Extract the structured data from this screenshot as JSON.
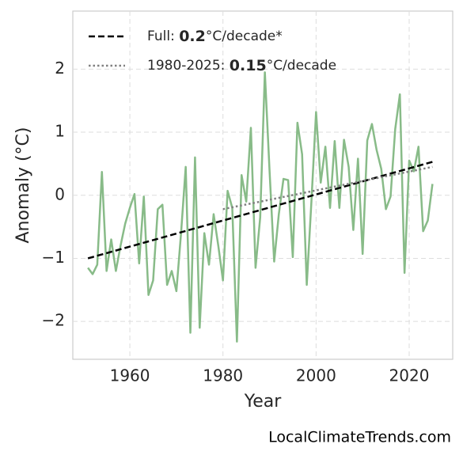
{
  "chart_data": {
    "type": "line",
    "xlabel": "Year",
    "ylabel": "Anomaly (°C)",
    "source": "LocalClimateTrends.com",
    "x": [
      1951,
      1952,
      1953,
      1954,
      1955,
      1956,
      1957,
      1958,
      1959,
      1960,
      1961,
      1962,
      1963,
      1964,
      1965,
      1966,
      1967,
      1968,
      1969,
      1970,
      1971,
      1972,
      1973,
      1974,
      1975,
      1976,
      1977,
      1978,
      1979,
      1980,
      1981,
      1982,
      1983,
      1984,
      1985,
      1986,
      1987,
      1988,
      1989,
      1990,
      1991,
      1992,
      1993,
      1994,
      1995,
      1996,
      1997,
      1998,
      1999,
      2000,
      2001,
      2002,
      2003,
      2004,
      2005,
      2006,
      2007,
      2008,
      2009,
      2010,
      2011,
      2012,
      2013,
      2014,
      2015,
      2016,
      2017,
      2018,
      2019,
      2020,
      2021,
      2022,
      2023,
      2024,
      2025
    ],
    "series": [
      {
        "color": "#88bb88",
        "style": "solid",
        "values": [
          -1.15,
          -1.25,
          -1.1,
          0.37,
          -1.2,
          -0.7,
          -1.2,
          -0.8,
          -0.45,
          -0.2,
          0.02,
          -1.08,
          -0.02,
          -1.58,
          -1.35,
          -0.22,
          -0.15,
          -1.42,
          -1.2,
          -1.52,
          -0.6,
          0.45,
          -2.18,
          0.6,
          -2.1,
          -0.6,
          -1.1,
          -0.3,
          -0.8,
          -1.35,
          0.07,
          -0.2,
          -2.32,
          0.32,
          -0.1,
          1.07,
          -1.15,
          -0.35,
          1.95,
          0.4,
          -1.05,
          -0.3,
          0.26,
          0.24,
          -0.98,
          1.15,
          0.65,
          -1.42,
          -0.1,
          1.32,
          0.2,
          0.77,
          -0.2,
          0.86,
          -0.2,
          0.88,
          0.45,
          -0.55,
          0.58,
          -0.93,
          0.87,
          1.13,
          0.72,
          0.42,
          -0.22,
          -0.02,
          1.05,
          1.6,
          -1.23,
          0.55,
          0.38,
          0.77,
          -0.57,
          -0.4,
          0.18
        ]
      },
      {
        "name": [
          "Full: ",
          "0.2",
          "°C/decade*"
        ],
        "bold_part": 1,
        "color": "#000000",
        "style": "dashed",
        "x": [
          1951,
          2025
        ],
        "values": [
          -1.0,
          0.53
        ]
      },
      {
        "name": [
          "1980-2025: ",
          "0.15",
          "°C/decade"
        ],
        "bold_part": 1,
        "color": "#808080",
        "style": "dotted",
        "x": [
          1980,
          2025
        ],
        "values": [
          -0.22,
          0.45
        ]
      }
    ],
    "xlim": [
      1947.75,
      2029.35
    ],
    "ylim": [
      -2.6,
      2.92
    ],
    "xticks": [
      1960,
      1980,
      2000,
      2020
    ],
    "yticks": [
      {
        "value": -2,
        "label": "−2"
      },
      {
        "value": -1,
        "label": "−1"
      },
      0,
      1,
      2
    ],
    "grid": true,
    "legend": "upper left"
  }
}
